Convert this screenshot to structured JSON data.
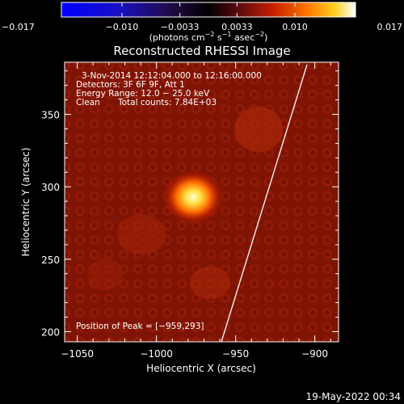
{
  "colorbar": {
    "ticks": [
      {
        "value": -0.017,
        "label": "−0.017"
      },
      {
        "value": -0.01,
        "label": "−0.010"
      },
      {
        "value": -0.0033,
        "label": "−0.0033"
      },
      {
        "value": 0.0033,
        "label": "0.0033"
      },
      {
        "value": 0.01,
        "label": "0.010"
      },
      {
        "value": 0.017,
        "label": "0.017"
      }
    ],
    "range": [
      -0.017,
      0.017
    ],
    "units": {
      "pre": "(photons cm",
      "e1": "−2",
      "mid": " s",
      "e2": "−1",
      "mid2": " asec",
      "e3": "−2",
      "post": ")"
    }
  },
  "title": "Reconstructed RHESSI Image",
  "annotations": {
    "line1": "3-Nov-2014 12:12:04.000 to 12:16:00.000",
    "line2": "Detectors: 3F 6F 9F, Att 1",
    "line3": "Energy Range: 12.0 − 25.0 keV",
    "line4_a": "Clean",
    "line4_b": "Total counts: 7.84E+03",
    "peak": "Position of Peak = [−959,293]"
  },
  "axes": {
    "xlabel": "Heliocentric X (arcsec)",
    "ylabel": "Heliocentric Y (arcsec)",
    "xlim": [
      -1058,
      -885
    ],
    "ylim": [
      193,
      386
    ],
    "xticks": [
      {
        "value": -1050,
        "label": "−1050"
      },
      {
        "value": -1000,
        "label": "−1000"
      },
      {
        "value": -950,
        "label": "−950"
      },
      {
        "value": -900,
        "label": "−900"
      }
    ],
    "yticks": [
      {
        "value": 200,
        "label": "200"
      },
      {
        "value": 250,
        "label": "250"
      },
      {
        "value": 300,
        "label": "300"
      },
      {
        "value": 350,
        "label": "350"
      }
    ]
  },
  "timestamp": "19-May-2022 00:34"
}
